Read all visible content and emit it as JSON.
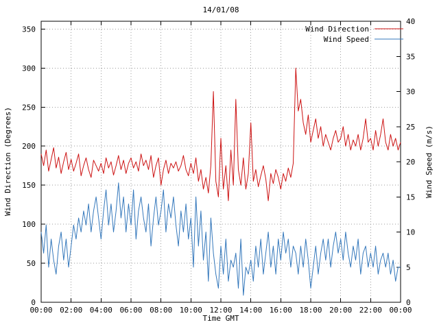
{
  "chart_data": {
    "type": "line",
    "title": "14/01/08",
    "xlabel": "Time GMT",
    "x_ticks": [
      "00:00",
      "02:00",
      "04:00",
      "06:00",
      "08:00",
      "10:00",
      "12:00",
      "14:00",
      "16:00",
      "18:00",
      "20:00",
      "22:00",
      "00:00"
    ],
    "x_range_hours": [
      0,
      24
    ],
    "x_tick_step_hours": 2,
    "grid": true,
    "legend_position": "top-right-inside",
    "sample_interval_minutes": 10,
    "colors": {
      "background": "#ffffff",
      "axis": "#000000",
      "grid": "#9a9a9a",
      "text": "#000000"
    },
    "y_left": {
      "label": "Wind Direction (Degrees)",
      "range": [
        0,
        360
      ],
      "ticks": [
        0,
        50,
        100,
        150,
        200,
        250,
        300,
        350
      ]
    },
    "y_right": {
      "label": "Wind Speed (m/s)",
      "range": [
        0,
        40
      ],
      "ticks": [
        0,
        5,
        10,
        15,
        20,
        25,
        30,
        35,
        40
      ]
    },
    "series": [
      {
        "name": "Wind Direction",
        "axis": "left",
        "color": "#cc1111",
        "values": [
          190,
          175,
          195,
          168,
          183,
          198,
          172,
          186,
          165,
          180,
          192,
          170,
          183,
          168,
          178,
          190,
          162,
          175,
          185,
          170,
          160,
          182,
          175,
          168,
          178,
          165,
          185,
          172,
          180,
          163,
          175,
          188,
          170,
          182,
          165,
          178,
          185,
          172,
          180,
          168,
          190,
          175,
          182,
          170,
          188,
          160,
          175,
          185,
          150,
          170,
          182,
          165,
          178,
          172,
          180,
          168,
          175,
          188,
          170,
          162,
          178,
          165,
          185,
          155,
          170,
          145,
          160,
          140,
          175,
          270,
          155,
          135,
          210,
          145,
          175,
          130,
          195,
          150,
          260,
          170,
          150,
          185,
          145,
          165,
          230,
          155,
          170,
          148,
          162,
          175,
          158,
          130,
          165,
          152,
          170,
          160,
          145,
          165,
          155,
          172,
          160,
          178,
          300,
          245,
          260,
          230,
          215,
          240,
          205,
          220,
          235,
          210,
          225,
          200,
          215,
          205,
          195,
          210,
          220,
          205,
          210,
          225,
          200,
          215,
          195,
          208,
          200,
          215,
          195,
          210,
          235,
          205,
          210,
          195,
          220,
          200,
          215,
          235,
          205,
          195,
          215,
          200,
          210,
          195,
          205
        ]
      },
      {
        "name": "Wind Speed",
        "axis": "right",
        "color": "#3377bb",
        "values": [
          10,
          7,
          11,
          5,
          9,
          6,
          4,
          8,
          10,
          6,
          9,
          5,
          8,
          11,
          9,
          12,
          10,
          13,
          11,
          14,
          10,
          13,
          15,
          12,
          9,
          13,
          16,
          11,
          14,
          10,
          13,
          17,
          12,
          15,
          10,
          14,
          11,
          16,
          9,
          13,
          15,
          12,
          10,
          14,
          8,
          12,
          15,
          11,
          13,
          16,
          10,
          14,
          12,
          15,
          11,
          8,
          13,
          10,
          14,
          9,
          12,
          5,
          15,
          8,
          13,
          6,
          10,
          3,
          12,
          7,
          4,
          2,
          8,
          4,
          9,
          3,
          6,
          5,
          7,
          2,
          9,
          1,
          5,
          4,
          6,
          3,
          8,
          5,
          9,
          4,
          7,
          10,
          5,
          8,
          4,
          9,
          6,
          10,
          7,
          9,
          5,
          8,
          7,
          4,
          8,
          5,
          9,
          6,
          2,
          5,
          8,
          4,
          7,
          9,
          6,
          9,
          5,
          8,
          10,
          7,
          9,
          6,
          10,
          7,
          5,
          8,
          6,
          9,
          4,
          7,
          8,
          5,
          7,
          5,
          8,
          4,
          6,
          7,
          5,
          7,
          4,
          6,
          3,
          5,
          5
        ]
      }
    ]
  }
}
